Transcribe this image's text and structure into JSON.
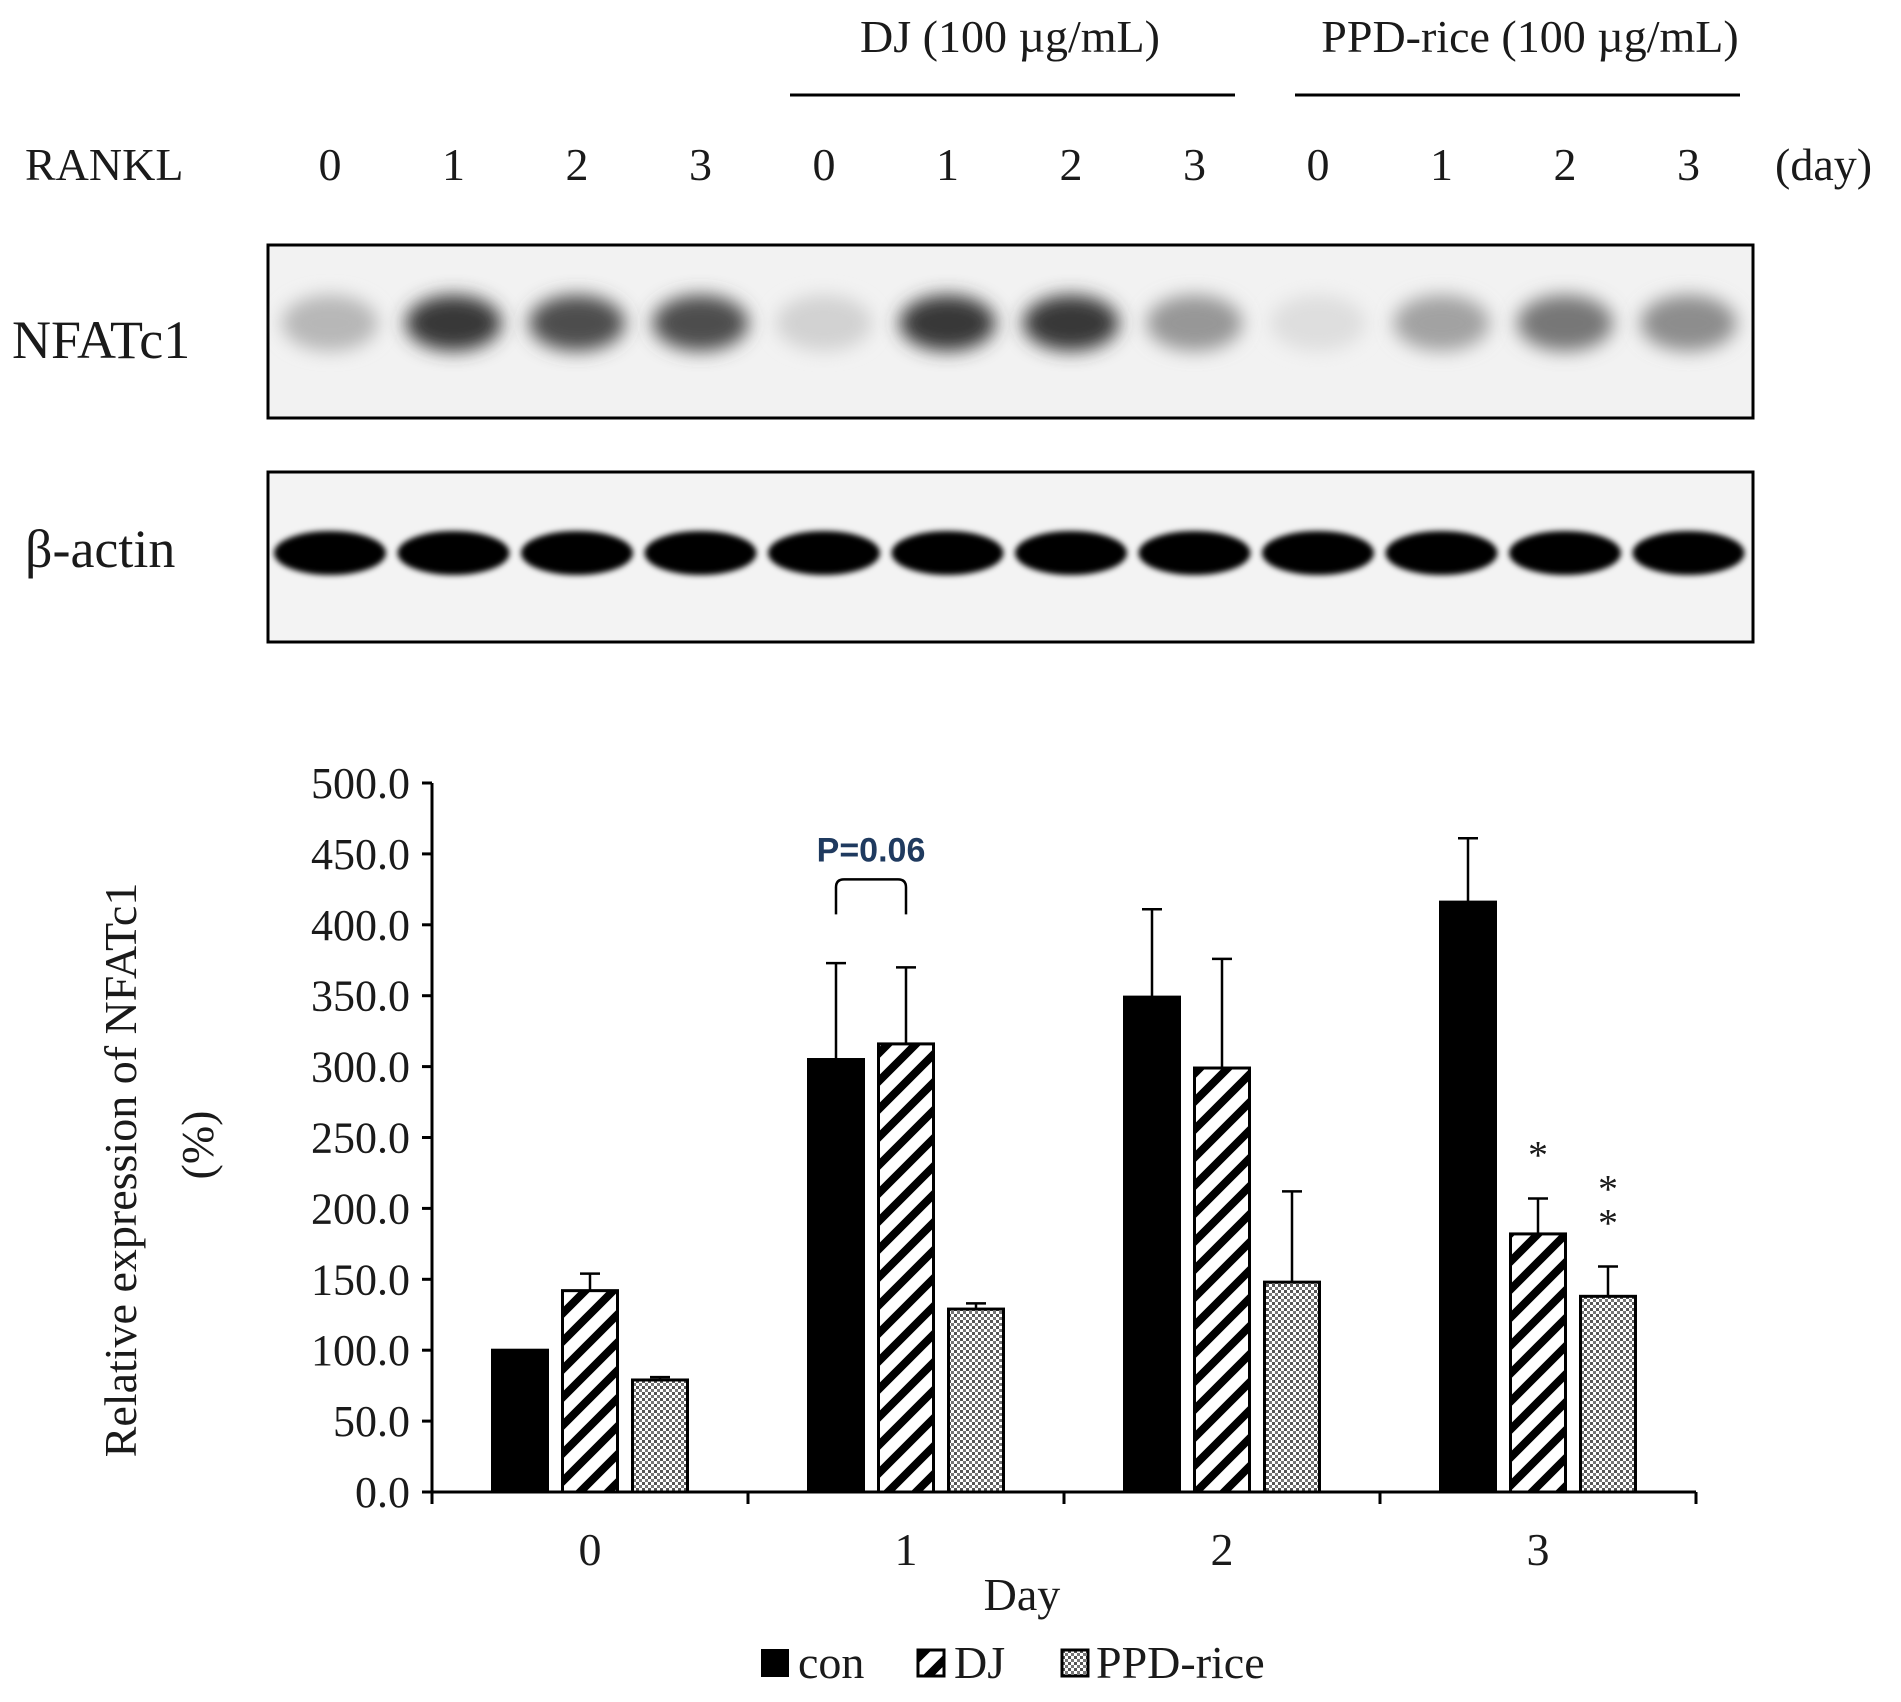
{
  "blot": {
    "lane_row_label": "RANKL",
    "lane_unit": "(day)",
    "lanes": [
      "0",
      "1",
      "2",
      "3",
      "0",
      "1",
      "2",
      "3",
      "0",
      "1",
      "2",
      "3"
    ],
    "groups": [
      {
        "label": "DJ (100 µg/mL)",
        "first_lane": 4,
        "last_lane": 7
      },
      {
        "label": "PPD-rice (100 µg/mL)",
        "first_lane": 8,
        "last_lane": 11
      }
    ],
    "panels": [
      {
        "label": "NFATc1",
        "bands": [
          0.25,
          0.85,
          0.75,
          0.75,
          0.12,
          0.85,
          0.85,
          0.4,
          0.06,
          0.35,
          0.55,
          0.45
        ]
      },
      {
        "label": "β-actin",
        "bands": [
          1,
          1,
          1,
          1,
          1,
          1,
          1,
          1,
          1,
          1,
          1,
          1
        ]
      }
    ]
  },
  "chart_data": {
    "type": "bar",
    "xlabel": "Day",
    "ylabel": "Relative expression of NFATc1",
    "ylabel_line2": "(%)",
    "ylim": [
      0,
      500
    ],
    "yticks": [
      "0.0",
      "50.0",
      "100.0",
      "150.0",
      "200.0",
      "250.0",
      "300.0",
      "350.0",
      "400.0",
      "450.0",
      "500.0"
    ],
    "categories": [
      "0",
      "1",
      "2",
      "3"
    ],
    "series": [
      {
        "name": "con",
        "fill": "solid",
        "color": "#000000",
        "values": [
          100,
          305,
          349,
          416
        ],
        "errors": [
          0,
          68,
          62,
          45
        ]
      },
      {
        "name": "DJ",
        "fill": "hatch",
        "color": "#000000",
        "values": [
          142,
          316,
          299,
          182
        ],
        "errors": [
          12,
          54,
          77,
          25
        ]
      },
      {
        "name": "PPD-rice",
        "fill": "dots",
        "color": "#000000",
        "values": [
          79,
          129,
          148,
          138
        ],
        "errors": [
          2,
          4,
          64,
          21
        ]
      }
    ],
    "annotations": [
      {
        "text": "P=0.06",
        "category": 1,
        "from_series": 0,
        "to_series": 1,
        "bracket_top": 432
      },
      {
        "text": "*",
        "category": 3,
        "series": 1
      },
      {
        "text": "**",
        "category": 3,
        "series": 2
      }
    ],
    "legend_position": "bottom",
    "grid": false
  }
}
